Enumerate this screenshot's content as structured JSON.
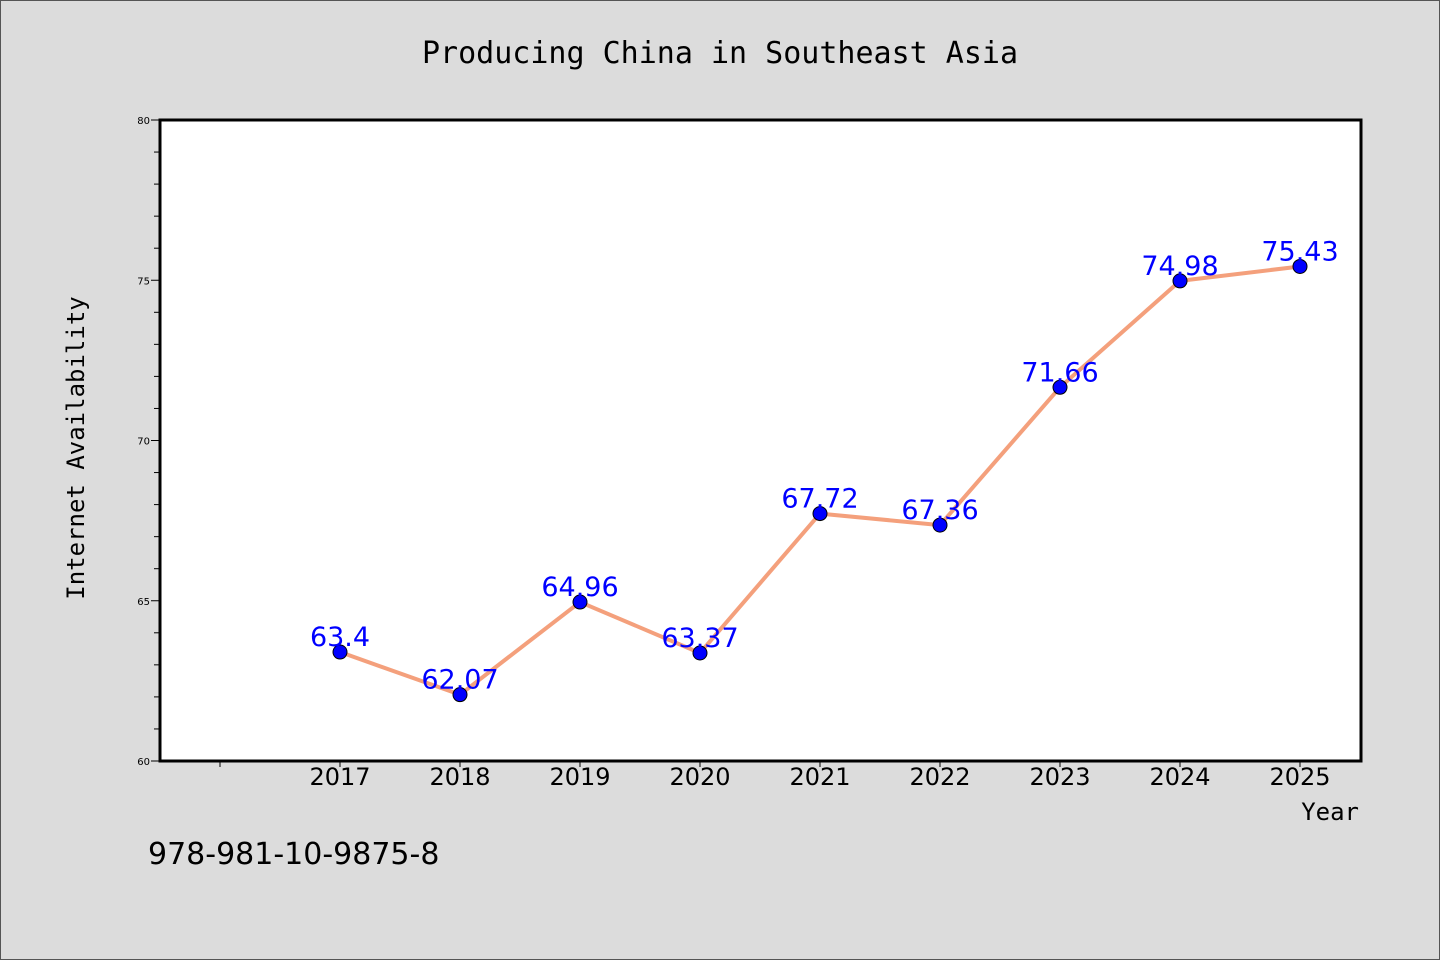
{
  "chart_data": {
    "type": "line",
    "title": "Producing China in Southeast Asia",
    "xlabel": "Year",
    "ylabel": "Internet Availability",
    "categories": [
      "2017",
      "2018",
      "2019",
      "2020",
      "2021",
      "2022",
      "2023",
      "2024",
      "2025"
    ],
    "series": [
      {
        "values": [
          63.4,
          62.07,
          64.96,
          63.37,
          67.72,
          67.36,
          71.66,
          74.98,
          75.43
        ],
        "labels": [
          "63.4",
          "62.07",
          "64.96",
          "63.37",
          "67.72",
          "67.36",
          "71.66",
          "74.98",
          "75.43"
        ]
      }
    ],
    "ylim": [
      60,
      80
    ],
    "yticks": [
      "60",
      "65",
      "70",
      "75",
      "80"
    ],
    "grid": false,
    "line_color": "#f4a07c",
    "marker_color": "#0000ff",
    "label_color": "#0000ff"
  },
  "footer": {
    "isbn": "978-981-10-9875-8"
  }
}
